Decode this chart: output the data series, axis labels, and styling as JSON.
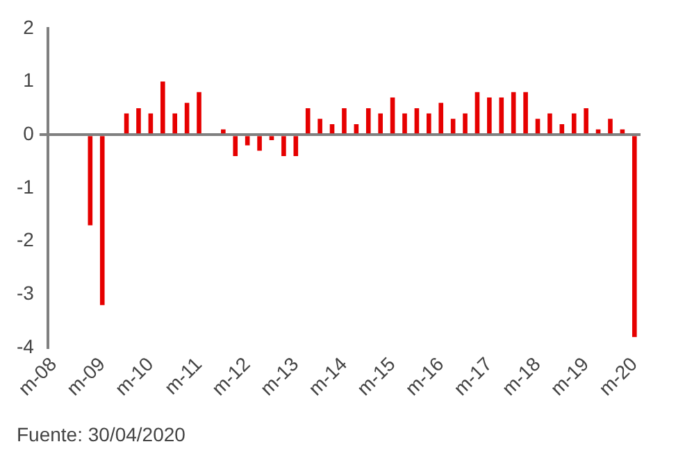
{
  "chart_data": {
    "type": "bar",
    "categories": [
      "m-08",
      null,
      null,
      null,
      "m-09",
      null,
      null,
      null,
      "m-10",
      null,
      null,
      null,
      "m-11",
      null,
      null,
      null,
      "m-12",
      null,
      null,
      null,
      "m-13",
      null,
      null,
      null,
      "m-14",
      null,
      null,
      null,
      "m-15",
      null,
      null,
      null,
      "m-16",
      null,
      null,
      null,
      "m-17",
      null,
      null,
      null,
      "m-18",
      null,
      null,
      null,
      "m-19",
      null,
      null,
      null,
      "m-20"
    ],
    "values": [
      null,
      null,
      null,
      -1.7,
      -3.2,
      0,
      0.4,
      0.5,
      0.4,
      1.0,
      0.4,
      0.6,
      0.8,
      0,
      0.1,
      -0.4,
      -0.2,
      -0.3,
      -0.1,
      -0.4,
      -0.4,
      0.5,
      0.3,
      0.2,
      0.5,
      0.2,
      0.5,
      0.4,
      0.7,
      0.4,
      0.5,
      0.4,
      0.6,
      0.3,
      0.4,
      0.8,
      0.7,
      0.7,
      0.8,
      0.8,
      0.3,
      0.4,
      0.2,
      0.4,
      0.5,
      0.1,
      0.3,
      0.1,
      -3.8
    ],
    "color": "#e60000",
    "ylim": [
      -4,
      2
    ],
    "yticks": [
      -4,
      -3,
      -2,
      -1,
      0,
      1,
      2
    ],
    "annotations": [
      "Fuente: 30/04/2020"
    ]
  }
}
